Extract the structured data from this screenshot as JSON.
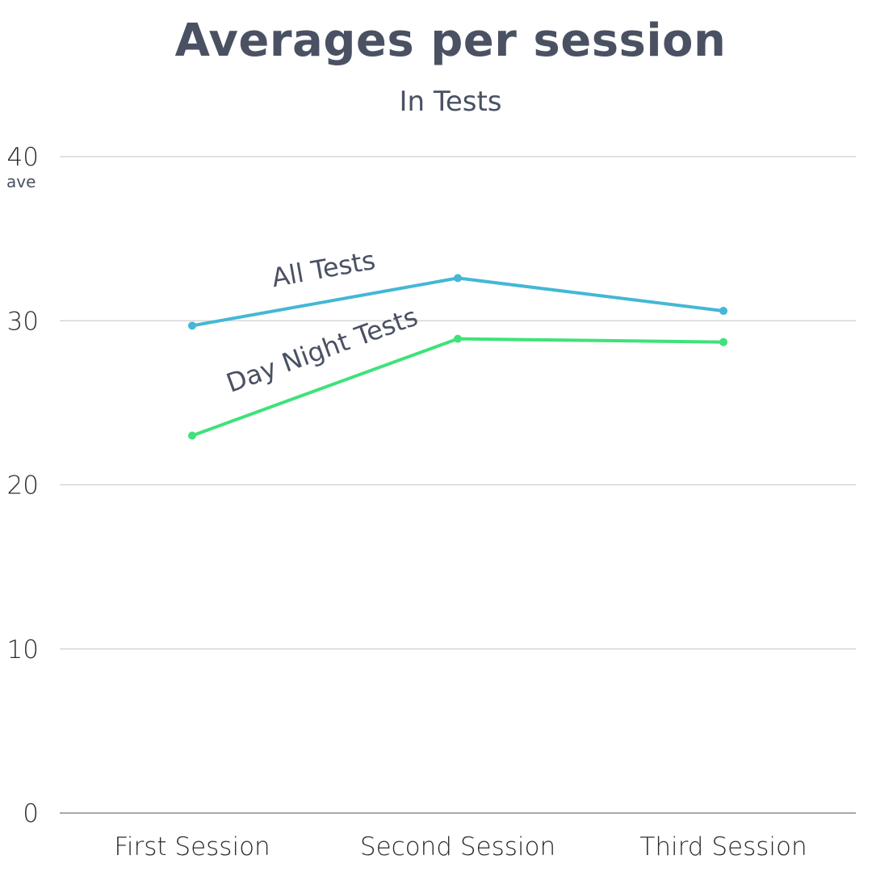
{
  "chart_data": {
    "type": "line",
    "title": "Averages per session",
    "subtitle": "In Tests",
    "ylabel": "ave",
    "xlabel": "",
    "categories": [
      "First Session",
      "Second Session",
      "Third Session"
    ],
    "ylim": [
      0,
      40
    ],
    "yticks": [
      0,
      10,
      20,
      30,
      40
    ],
    "grid": true,
    "legend": "inline-labels",
    "series": [
      {
        "name": "All Tests",
        "values": [
          29.7,
          32.6,
          30.6
        ],
        "color": "#44b7d6"
      },
      {
        "name": "Day Night Tests",
        "values": [
          23.0,
          28.9,
          28.7
        ],
        "color": "#3ee27a"
      }
    ]
  }
}
